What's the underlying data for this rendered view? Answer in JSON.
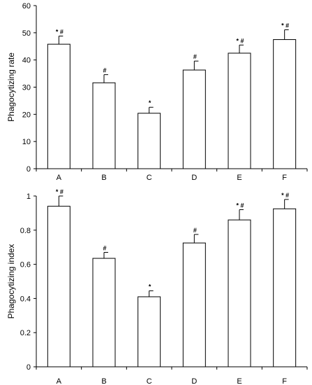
{
  "chart_data": [
    {
      "type": "bar",
      "title": "",
      "xlabel": "",
      "ylabel": "Phagocytizing rate",
      "ylim": [
        0,
        60
      ],
      "yticks": [
        0,
        10,
        20,
        30,
        40,
        50,
        60
      ],
      "grid": false,
      "categories": [
        "A",
        "B",
        "C",
        "D",
        "E",
        "F"
      ],
      "values": [
        45.8,
        31.6,
        20.4,
        36.3,
        42.5,
        47.5
      ],
      "errors": [
        3.0,
        3.0,
        2.2,
        3.3,
        3.0,
        3.6
      ],
      "annotations": [
        "* #",
        "#",
        "*",
        "#",
        "* #",
        "* #"
      ],
      "bar_color": "#ffffff",
      "edge_color": "#000000"
    },
    {
      "type": "bar",
      "title": "",
      "xlabel": "",
      "ylabel": "Phagocytizing index",
      "ylim": [
        0,
        1
      ],
      "yticks": [
        "0",
        "0.2",
        "0.4",
        "0.6",
        "0.8",
        "1"
      ],
      "grid": false,
      "categories": [
        "A",
        "B",
        "C",
        "D",
        "E",
        "F"
      ],
      "values": [
        0.94,
        0.635,
        0.41,
        0.725,
        0.86,
        0.925
      ],
      "errors": [
        0.06,
        0.035,
        0.035,
        0.05,
        0.06,
        0.055
      ],
      "annotations": [
        "* #",
        "#",
        "*",
        "#",
        "* #",
        "* #"
      ],
      "bar_color": "#ffffff",
      "edge_color": "#000000"
    }
  ]
}
